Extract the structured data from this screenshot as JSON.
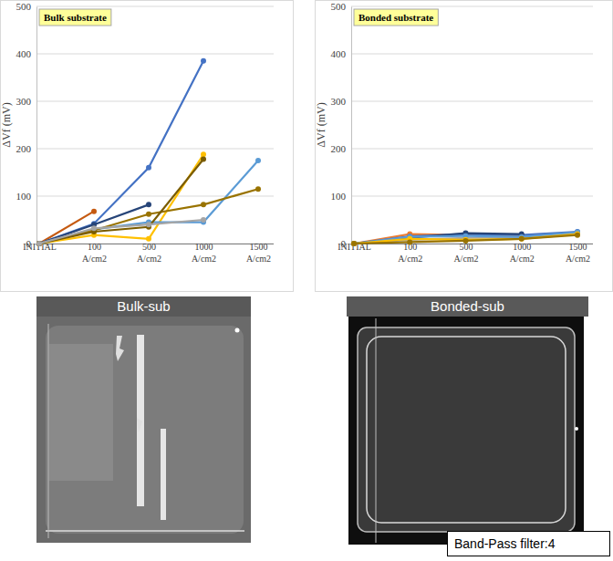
{
  "chart_data": [
    {
      "type": "line",
      "title": "Bulk substrate",
      "ylabel": "ΔVf (mV)",
      "categories": [
        "INITIAL",
        "100 A/cm2",
        "500 A/cm2",
        "1000 A/cm2",
        "1500 A/cm2"
      ],
      "ylim": [
        0,
        500
      ],
      "yticks": [
        0,
        100,
        200,
        300,
        400,
        500
      ],
      "grid": true,
      "marker": "circle",
      "series": [
        {
          "color": "#c55a11",
          "values": [
            0,
            68,
            null,
            null,
            null
          ]
        },
        {
          "color": "#4472c4",
          "values": [
            0,
            42,
            160,
            385,
            null
          ]
        },
        {
          "color": "#264478",
          "values": [
            0,
            40,
            82,
            null,
            null
          ]
        },
        {
          "color": "#ffc000",
          "values": [
            0,
            18,
            10,
            188,
            null
          ]
        },
        {
          "color": "#5b9bd5",
          "values": [
            0,
            30,
            45,
            45,
            175
          ]
        },
        {
          "color": "#997300",
          "values": [
            0,
            28,
            62,
            82,
            115
          ]
        },
        {
          "color": "#7a5c00",
          "values": [
            0,
            25,
            35,
            178,
            null
          ]
        },
        {
          "color": "#a5a5a5",
          "values": [
            0,
            32,
            40,
            50,
            null
          ]
        }
      ]
    },
    {
      "type": "line",
      "title": "Bonded substrate",
      "ylabel": "ΔVf (mV)",
      "categories": [
        "INITIAL",
        "100 A/cm2",
        "500 A/cm2",
        "1000 A/cm2",
        "1500 A/cm2"
      ],
      "ylim": [
        0,
        500
      ],
      "yticks": [
        0,
        100,
        200,
        300,
        400,
        500
      ],
      "grid": true,
      "marker": "circle",
      "series": [
        {
          "color": "#ed7d31",
          "values": [
            0,
            20,
            18,
            15,
            20
          ]
        },
        {
          "color": "#4472c4",
          "values": [
            0,
            15,
            20,
            18,
            25
          ]
        },
        {
          "color": "#264478",
          "values": [
            0,
            12,
            22,
            20,
            null
          ]
        },
        {
          "color": "#a5a5a5",
          "values": [
            0,
            8,
            12,
            12,
            22
          ]
        },
        {
          "color": "#5b9bd5",
          "values": [
            0,
            14,
            16,
            14,
            24
          ]
        },
        {
          "color": "#ffc000",
          "values": [
            0,
            10,
            8,
            10,
            20
          ]
        },
        {
          "color": "#997300",
          "values": [
            0,
            3,
            6,
            10,
            18
          ]
        }
      ]
    }
  ],
  "images": [
    {
      "label": "Bulk-sub"
    },
    {
      "label": "Bonded-sub"
    }
  ],
  "caption": "Band-Pass filter:4"
}
